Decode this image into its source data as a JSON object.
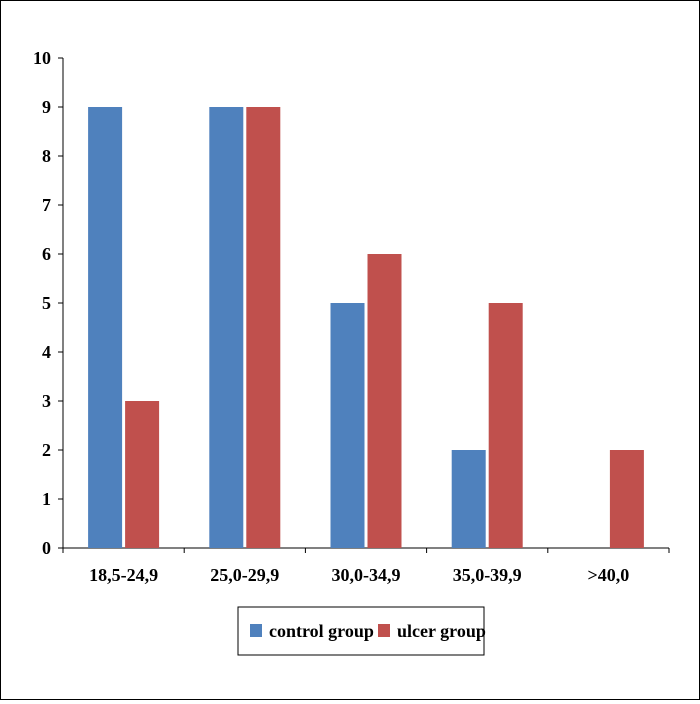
{
  "chart_data": {
    "type": "bar",
    "categories": [
      "18,5-24,9",
      "25,0-29,9",
      "30,0-34,9",
      "35,0-39,9",
      ">40,0"
    ],
    "series": [
      {
        "name": "control group",
        "color": "#4F81BD",
        "values": [
          9,
          9,
          5,
          2,
          0
        ]
      },
      {
        "name": "ulcer group",
        "color": "#C0504D",
        "values": [
          3,
          9,
          6,
          5,
          2
        ]
      }
    ],
    "ylim": [
      0,
      10
    ],
    "yticks": [
      "0",
      "1",
      "2",
      "3",
      "4",
      "5",
      "6",
      "7",
      "8",
      "9",
      "10"
    ],
    "xlabel": "",
    "ylabel": "",
    "title": "",
    "grid": false,
    "legend": "bottom"
  }
}
